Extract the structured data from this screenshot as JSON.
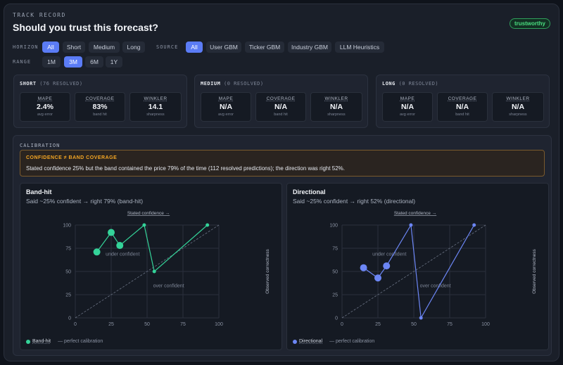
{
  "header": {
    "eyebrow": "TRACK RECORD",
    "title": "Should you trust this forecast?",
    "badge": "trustworthy"
  },
  "filters": {
    "horizon_label": "HORIZON",
    "horizon": [
      "All",
      "Short",
      "Medium",
      "Long"
    ],
    "horizon_selected": "All",
    "source_label": "SOURCE",
    "source": [
      "All",
      "User GBM",
      "Ticker GBM",
      "Industry GBM",
      "LLM Heuristics"
    ],
    "source_selected": "All",
    "range_label": "RANGE",
    "range": [
      "1M",
      "3M",
      "6M",
      "1Y"
    ],
    "range_selected": "3M"
  },
  "cards": [
    {
      "name": "SHORT",
      "resolved": "(76 RESOLVED)",
      "metrics": [
        {
          "label": "MAPE",
          "value": "2.4%",
          "sub": "avg error"
        },
        {
          "label": "COVERAGE",
          "value": "83%",
          "sub": "band hit"
        },
        {
          "label": "WINKLER",
          "value": "14.1",
          "sub": "sharpness"
        }
      ]
    },
    {
      "name": "MEDIUM",
      "resolved": "(0 RESOLVED)",
      "metrics": [
        {
          "label": "MAPE",
          "value": "N/A",
          "sub": "avg error"
        },
        {
          "label": "COVERAGE",
          "value": "N/A",
          "sub": "band hit"
        },
        {
          "label": "WINKLER",
          "value": "N/A",
          "sub": "sharpness"
        }
      ]
    },
    {
      "name": "LONG",
      "resolved": "(0 RESOLVED)",
      "metrics": [
        {
          "label": "MAPE",
          "value": "N/A",
          "sub": "avg error"
        },
        {
          "label": "COVERAGE",
          "value": "N/A",
          "sub": "band hit"
        },
        {
          "label": "WINKLER",
          "value": "N/A",
          "sub": "sharpness"
        }
      ]
    }
  ],
  "calibration": {
    "heading": "CALIBRATION",
    "alert_title": "CONFIDENCE ≠ BAND COVERAGE",
    "alert_body": "Stated confidence 25% but the band contained the price 79% of the time (112 resolved predictions); the direction was right 52%."
  },
  "colors": {
    "accent": "#5b7cf6",
    "band_hit": "#34d399",
    "directional": "#6c86f5",
    "badge": "#4ade80",
    "warning": "#f5a623"
  },
  "chart_data": [
    {
      "type": "scatter",
      "title": "Band-hit",
      "subtitle": "Said ~25% confident → right 79% (band-hit)",
      "xlabel": "Stated confidence →",
      "ylabel": "Observed correctness",
      "xlim": [
        0,
        100
      ],
      "ylim": [
        0,
        100
      ],
      "xticks": [
        "0",
        "25",
        "50",
        "75",
        "100"
      ],
      "yticks": [
        "0",
        "25",
        "50",
        "75",
        "100"
      ],
      "annotations": [
        "under confident",
        "over confident"
      ],
      "legend": [
        "Band-hit",
        "— perfect calibration"
      ],
      "grid": true,
      "series": [
        {
          "name": "Band-hit",
          "color": "#34d399",
          "x": [
            15,
            25,
            31,
            48,
            55,
            92
          ],
          "y": [
            71,
            92,
            78,
            100,
            50,
            100
          ],
          "sizes": [
            5,
            5,
            5,
            2.5,
            2.5,
            2.5
          ]
        }
      ]
    },
    {
      "type": "scatter",
      "title": "Directional",
      "subtitle": "Said ~25% confident → right 52% (directional)",
      "xlabel": "Stated confidence →",
      "ylabel": "Observed correctness",
      "xlim": [
        0,
        100
      ],
      "ylim": [
        0,
        100
      ],
      "xticks": [
        "0",
        "25",
        "50",
        "75",
        "100"
      ],
      "yticks": [
        "0",
        "25",
        "50",
        "75",
        "100"
      ],
      "annotations": [
        "under confident",
        "over confident"
      ],
      "legend": [
        "Directional",
        "— perfect calibration"
      ],
      "grid": true,
      "series": [
        {
          "name": "Directional",
          "color": "#6c86f5",
          "x": [
            15,
            25,
            31,
            48,
            55,
            92
          ],
          "y": [
            54,
            43,
            56,
            100,
            0,
            100
          ],
          "sizes": [
            5,
            5,
            5,
            2.5,
            2.5,
            2.5
          ]
        }
      ]
    }
  ]
}
